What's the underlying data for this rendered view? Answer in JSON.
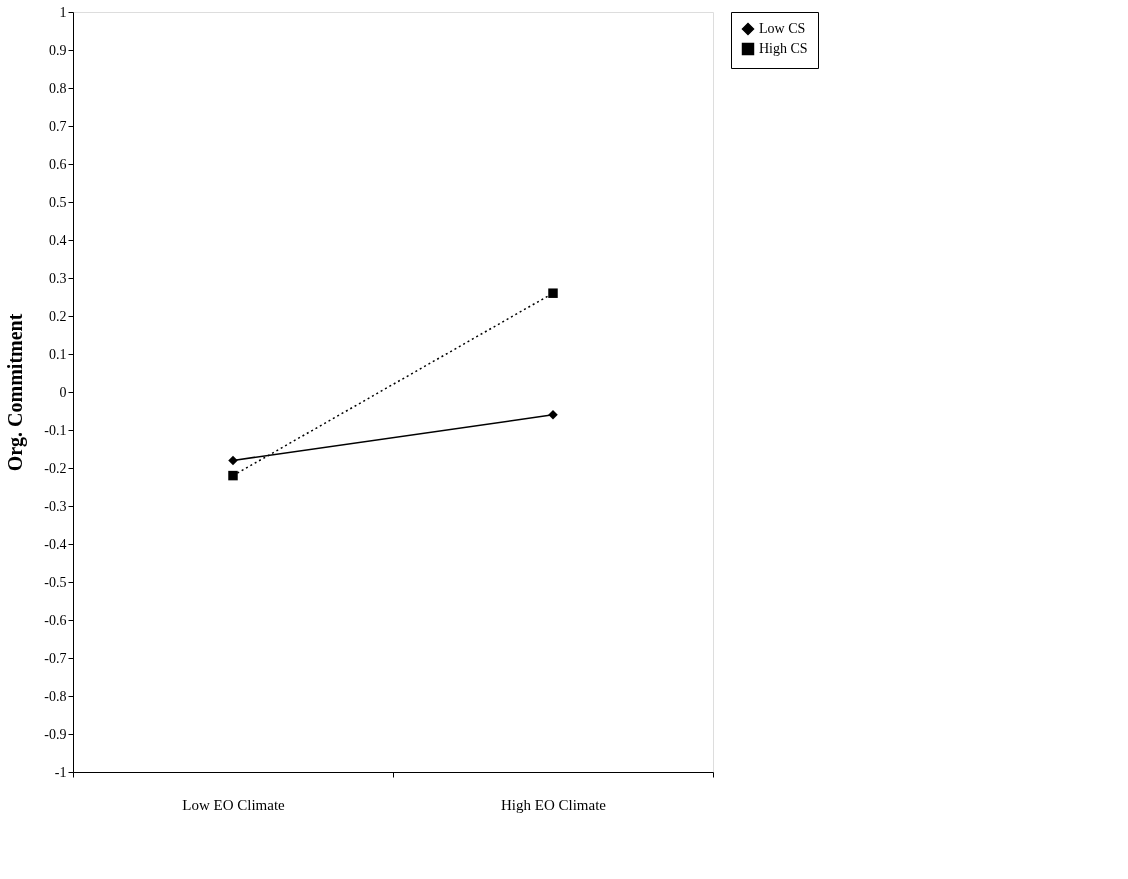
{
  "chart_data": {
    "type": "line",
    "ylabel": "Org. Commitment",
    "categories": [
      "Low EO Climate",
      "High EO Climate"
    ],
    "series": [
      {
        "name": "Low CS",
        "color": "#000000",
        "values": [
          -0.18,
          -0.06
        ],
        "marker": "diamond",
        "line_style": "solid"
      },
      {
        "name": "High CS",
        "color": "#000000",
        "values": [
          -0.22,
          0.26
        ],
        "marker": "square",
        "line_style": "dotted"
      }
    ],
    "ylim": [
      -1,
      1
    ],
    "yticks": [
      1,
      0.9,
      0.8,
      0.7,
      0.6,
      0.5,
      0.4,
      0.3,
      0.2,
      0.1,
      0,
      -0.1,
      -0.2,
      -0.3,
      -0.4,
      -0.5,
      -0.6,
      -0.7,
      -0.8,
      -0.9,
      -1
    ],
    "grid": false,
    "legend": "right"
  }
}
